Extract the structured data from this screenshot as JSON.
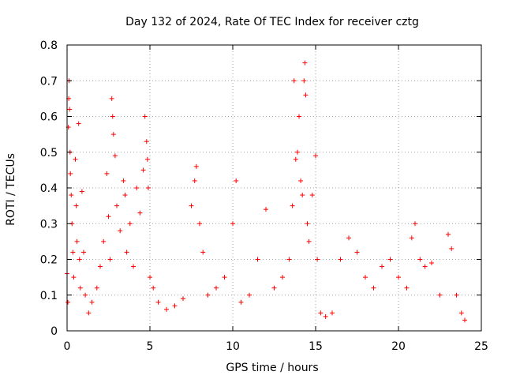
{
  "chart_data": {
    "type": "scatter",
    "title": "Day 132 of 2024, Rate Of TEC Index for receiver cztg",
    "xlabel": "GPS time / hours",
    "ylabel": "ROTI / TECUs",
    "xlim": [
      0,
      25
    ],
    "ylim": [
      0,
      0.8
    ],
    "xticks": [
      0,
      5,
      10,
      15,
      20,
      25
    ],
    "yticks": [
      0,
      0.1,
      0.2,
      0.3,
      0.4,
      0.5,
      0.6,
      0.7,
      0.8
    ],
    "xtick_labels": [
      "0",
      "5",
      "10",
      "15",
      "20",
      "25"
    ],
    "ytick_labels": [
      "0",
      "0.1",
      "0.2",
      "0.3",
      "0.4",
      "0.5",
      "0.6",
      "0.7",
      "0.8"
    ],
    "grid": true,
    "marker": "+",
    "series": [
      {
        "name": "ROTI",
        "color": "#ff0000",
        "points": [
          [
            0.0,
            0.16
          ],
          [
            0.05,
            0.08
          ],
          [
            0.08,
            0.57
          ],
          [
            0.1,
            0.65
          ],
          [
            0.12,
            0.7
          ],
          [
            0.15,
            0.62
          ],
          [
            0.18,
            0.5
          ],
          [
            0.2,
            0.44
          ],
          [
            0.25,
            0.38
          ],
          [
            0.3,
            0.3
          ],
          [
            0.35,
            0.22
          ],
          [
            0.4,
            0.15
          ],
          [
            0.5,
            0.48
          ],
          [
            0.55,
            0.35
          ],
          [
            0.6,
            0.25
          ],
          [
            0.7,
            0.58
          ],
          [
            0.75,
            0.2
          ],
          [
            0.8,
            0.12
          ],
          [
            0.9,
            0.39
          ],
          [
            1.0,
            0.22
          ],
          [
            1.1,
            0.1
          ],
          [
            1.3,
            0.05
          ],
          [
            1.5,
            0.08
          ],
          [
            1.8,
            0.12
          ],
          [
            2.0,
            0.18
          ],
          [
            2.2,
            0.25
          ],
          [
            2.4,
            0.44
          ],
          [
            2.5,
            0.32
          ],
          [
            2.6,
            0.2
          ],
          [
            2.7,
            0.65
          ],
          [
            2.75,
            0.6
          ],
          [
            2.8,
            0.55
          ],
          [
            2.9,
            0.49
          ],
          [
            3.0,
            0.35
          ],
          [
            3.2,
            0.28
          ],
          [
            3.4,
            0.42
          ],
          [
            3.5,
            0.38
          ],
          [
            3.6,
            0.22
          ],
          [
            3.8,
            0.3
          ],
          [
            4.0,
            0.18
          ],
          [
            4.2,
            0.4
          ],
          [
            4.4,
            0.33
          ],
          [
            4.6,
            0.45
          ],
          [
            4.7,
            0.6
          ],
          [
            4.8,
            0.53
          ],
          [
            4.85,
            0.48
          ],
          [
            4.9,
            0.4
          ],
          [
            5.0,
            0.15
          ],
          [
            5.2,
            0.12
          ],
          [
            5.5,
            0.08
          ],
          [
            6.0,
            0.06
          ],
          [
            6.5,
            0.07
          ],
          [
            7.0,
            0.09
          ],
          [
            7.5,
            0.35
          ],
          [
            7.7,
            0.42
          ],
          [
            7.8,
            0.46
          ],
          [
            8.0,
            0.3
          ],
          [
            8.2,
            0.22
          ],
          [
            8.5,
            0.1
          ],
          [
            9.0,
            0.12
          ],
          [
            9.5,
            0.15
          ],
          [
            10.0,
            0.3
          ],
          [
            10.2,
            0.42
          ],
          [
            10.5,
            0.08
          ],
          [
            11.0,
            0.1
          ],
          [
            11.5,
            0.2
          ],
          [
            12.0,
            0.34
          ],
          [
            12.5,
            0.12
          ],
          [
            13.0,
            0.15
          ],
          [
            13.4,
            0.2
          ],
          [
            13.6,
            0.35
          ],
          [
            13.7,
            0.7
          ],
          [
            13.8,
            0.48
          ],
          [
            13.9,
            0.5
          ],
          [
            14.0,
            0.6
          ],
          [
            14.1,
            0.42
          ],
          [
            14.2,
            0.38
          ],
          [
            14.3,
            0.7
          ],
          [
            14.35,
            0.75
          ],
          [
            14.4,
            0.66
          ],
          [
            14.5,
            0.3
          ],
          [
            14.6,
            0.25
          ],
          [
            14.8,
            0.38
          ],
          [
            15.0,
            0.49
          ],
          [
            15.1,
            0.2
          ],
          [
            15.3,
            0.05
          ],
          [
            15.6,
            0.04
          ],
          [
            16.0,
            0.05
          ],
          [
            16.5,
            0.2
          ],
          [
            17.0,
            0.26
          ],
          [
            17.5,
            0.22
          ],
          [
            18.0,
            0.15
          ],
          [
            18.5,
            0.12
          ],
          [
            19.0,
            0.18
          ],
          [
            19.5,
            0.2
          ],
          [
            20.0,
            0.15
          ],
          [
            20.5,
            0.12
          ],
          [
            20.8,
            0.26
          ],
          [
            21.0,
            0.3
          ],
          [
            21.3,
            0.2
          ],
          [
            21.6,
            0.18
          ],
          [
            22.0,
            0.19
          ],
          [
            22.5,
            0.1
          ],
          [
            23.0,
            0.27
          ],
          [
            23.2,
            0.23
          ],
          [
            23.5,
            0.1
          ],
          [
            23.8,
            0.05
          ],
          [
            24.0,
            0.03
          ]
        ]
      }
    ]
  }
}
